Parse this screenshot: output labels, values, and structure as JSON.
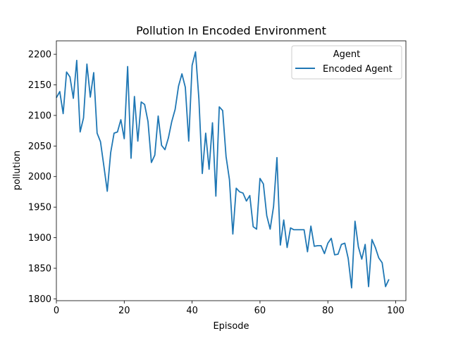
{
  "chart_data": {
    "type": "line",
    "title": "Pollution In Encoded Environment",
    "xlabel": "Episode",
    "ylabel": "pollution",
    "xlim": [
      0,
      103
    ],
    "ylim": [
      1797,
      2222
    ],
    "xticks": [
      0,
      20,
      40,
      60,
      80,
      100
    ],
    "yticks": [
      1800,
      1850,
      1900,
      1950,
      2000,
      2050,
      2100,
      2150,
      2200
    ],
    "grid": false,
    "legend": {
      "title": "Agent",
      "placement": "top-right"
    },
    "series": [
      {
        "name": "Encoded Agent",
        "color": "#1f77b4",
        "x": [
          0,
          1,
          2,
          3,
          4,
          5,
          6,
          7,
          8,
          9,
          10,
          11,
          12,
          13,
          14,
          15,
          16,
          17,
          18,
          19,
          20,
          21,
          22,
          23,
          24,
          25,
          26,
          27,
          28,
          29,
          30,
          31,
          32,
          33,
          34,
          35,
          36,
          37,
          38,
          39,
          40,
          41,
          42,
          43,
          44,
          45,
          46,
          47,
          48,
          49,
          50,
          51,
          52,
          53,
          54,
          55,
          56,
          57,
          58,
          59,
          60,
          61,
          62,
          63,
          64,
          65,
          66,
          67,
          68,
          69,
          70,
          71,
          72,
          73,
          74,
          75,
          76,
          77,
          78,
          79,
          80,
          81,
          82,
          83,
          84,
          85,
          86,
          87,
          88,
          89,
          90,
          91,
          92,
          93,
          94,
          95,
          96,
          97,
          98
        ],
        "y": [
          2129,
          2139,
          2103,
          2171,
          2163,
          2128,
          2190,
          2073,
          2096,
          2184,
          2130,
          2170,
          2071,
          2057,
          2017,
          1976,
          2039,
          2071,
          2073,
          2093,
          2062,
          2180,
          2030,
          2131,
          2058,
          2122,
          2118,
          2090,
          2023,
          2035,
          2099,
          2051,
          2044,
          2063,
          2090,
          2110,
          2148,
          2168,
          2146,
          2058,
          2182,
          2204,
          2127,
          2005,
          2071,
          2012,
          2088,
          1968,
          2114,
          2108,
          2033,
          1995,
          1906,
          1981,
          1975,
          1973,
          1960,
          1969,
          1918,
          1914,
          1997,
          1988,
          1936,
          1914,
          1951,
          2031,
          1888,
          1929,
          1884,
          1916,
          1913,
          1913,
          1913,
          1913,
          1877,
          1919,
          1886,
          1887,
          1887,
          1874,
          1891,
          1899,
          1872,
          1873,
          1889,
          1891,
          1866,
          1818,
          1927,
          1885,
          1865,
          1889,
          1820,
          1897,
          1884,
          1867,
          1859,
          1820,
          1832
        ]
      }
    ]
  }
}
